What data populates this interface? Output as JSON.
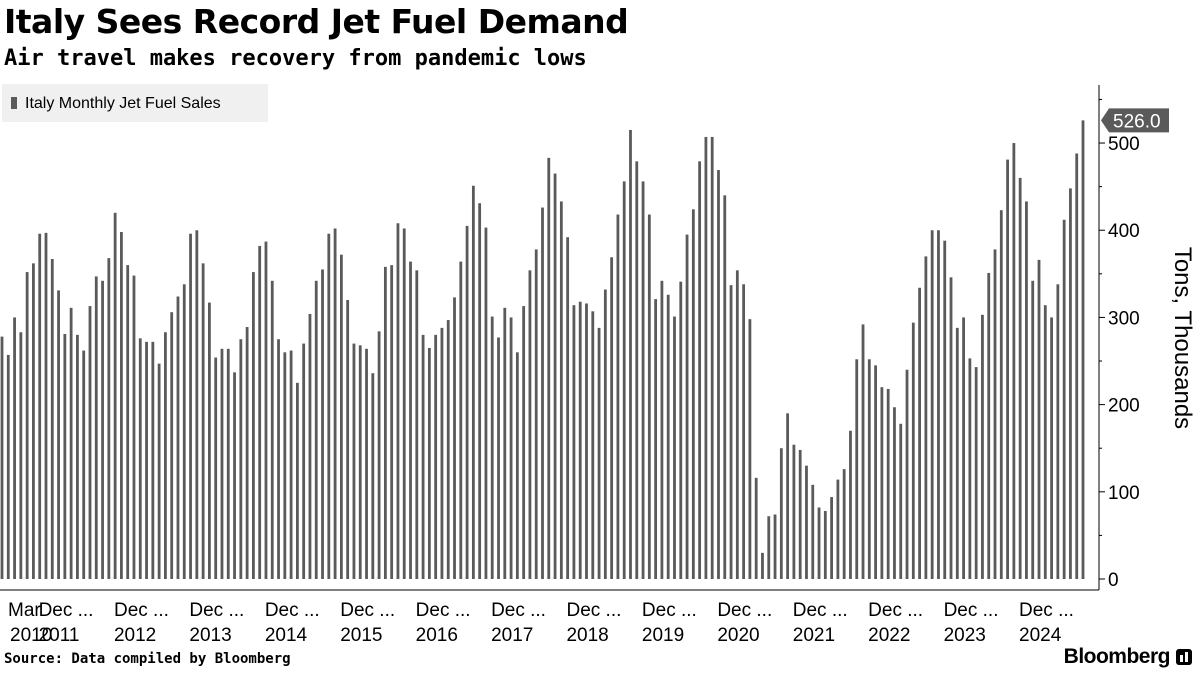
{
  "title": "Italy Sees Record Jet Fuel Demand",
  "subtitle": "Air travel makes recovery from pandemic lows",
  "source": "Source: Data compiled by Bloomberg",
  "brand": "Bloomberg",
  "colors": {
    "bar": "#5a5a5a",
    "legend_bg": "#f0f0f0",
    "axis": "#000000",
    "callout": "#5a5a5a"
  },
  "chart_data": {
    "type": "bar",
    "title": "Italy Sees Record Jet Fuel Demand",
    "ylabel": "Tons, Thousands",
    "xlabel": "",
    "legend": "Italy Monthly Jet Fuel Sales",
    "legend_position": "top-left",
    "ylim": [
      0,
      570
    ],
    "yticks": [
      0,
      100,
      200,
      300,
      400,
      500
    ],
    "last_value_label": "526.0",
    "start": "2010-03",
    "x_tick_labels": [
      {
        "top": "Mar",
        "bottom": "2010",
        "index": 0
      },
      {
        "top": "Dec ...",
        "bottom": "2011",
        "index": 9
      },
      {
        "top": "Dec ...",
        "bottom": "2012",
        "index": 21
      },
      {
        "top": "Dec ...",
        "bottom": "2013",
        "index": 33
      },
      {
        "top": "Dec ...",
        "bottom": "2014",
        "index": 45
      },
      {
        "top": "Dec ...",
        "bottom": "2015",
        "index": 57
      },
      {
        "top": "Dec ...",
        "bottom": "2016",
        "index": 69
      },
      {
        "top": "Dec ...",
        "bottom": "2017",
        "index": 81
      },
      {
        "top": "Dec ...",
        "bottom": "2018",
        "index": 93
      },
      {
        "top": "Dec ...",
        "bottom": "2019",
        "index": 105
      },
      {
        "top": "Dec ...",
        "bottom": "2020",
        "index": 117
      },
      {
        "top": "Dec ...",
        "bottom": "2021",
        "index": 129
      },
      {
        "top": "Dec ...",
        "bottom": "2022",
        "index": 141
      },
      {
        "top": "Dec ...",
        "bottom": "2023",
        "index": 153
      },
      {
        "top": "Dec ...",
        "bottom": "2024",
        "index": 165
      }
    ],
    "series": [
      {
        "name": "Italy Monthly Jet Fuel Sales",
        "values": [
          278,
          257,
          300,
          283,
          352,
          362,
          396,
          397,
          367,
          331,
          281,
          311,
          280,
          262,
          313,
          347,
          342,
          368,
          420,
          398,
          360,
          348,
          276,
          272,
          272,
          247,
          283,
          306,
          324,
          338,
          396,
          400,
          362,
          317,
          254,
          264,
          264,
          237,
          275,
          289,
          352,
          382,
          387,
          342,
          275,
          260,
          262,
          225,
          270,
          304,
          342,
          355,
          396,
          402,
          372,
          320,
          270,
          268,
          264,
          236,
          284,
          358,
          360,
          408,
          402,
          364,
          354,
          280,
          265,
          280,
          288,
          297,
          323,
          364,
          405,
          451,
          431,
          403,
          301,
          277,
          311,
          300,
          260,
          313,
          354,
          378,
          426,
          483,
          465,
          433,
          392,
          314,
          318,
          316,
          307,
          288,
          332,
          369,
          418,
          456,
          515,
          479,
          456,
          418,
          321,
          342,
          326,
          301,
          341,
          395,
          424,
          479,
          507,
          507,
          469,
          440,
          337,
          354,
          338,
          298,
          116,
          30,
          72,
          74,
          150,
          190,
          154,
          148,
          130,
          108,
          82,
          78,
          94,
          114,
          126,
          170,
          252,
          292,
          252,
          245,
          220,
          218,
          197,
          178,
          240,
          294,
          334,
          370,
          400,
          400,
          388,
          346,
          288,
          300,
          253,
          243,
          303,
          351,
          378,
          423,
          481,
          500,
          460,
          433,
          342,
          366,
          314,
          300,
          338,
          412,
          448,
          488,
          526
        ]
      }
    ]
  }
}
